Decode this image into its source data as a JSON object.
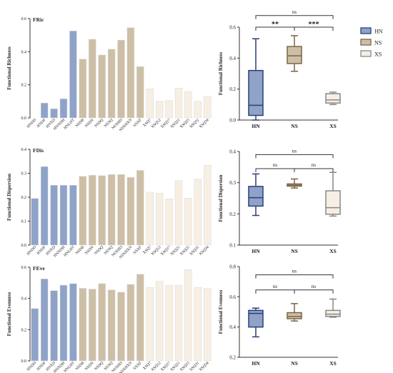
{
  "colors": {
    "HN": "#8fa3c9",
    "NS": "#cdbfa6",
    "XS": "#f7efe3",
    "HN_border": "#2b3f78",
    "NS_border": "#7a6547",
    "XS_border": "#888888",
    "bar_edge": "#d8d8d8"
  },
  "legend": {
    "entries": [
      {
        "name": "HN",
        "color_key": "HN"
      },
      {
        "name": "NS",
        "color_key": "NS"
      },
      {
        "name": "XS",
        "color_key": "XS"
      }
    ]
  },
  "chart_data": [
    {
      "type": "bar",
      "title": "FRic",
      "ylabel": "Functional Richness",
      "ylim": [
        0,
        0.6
      ],
      "yticks": [
        "0.0",
        "0.2",
        "0.4",
        "0.6"
      ],
      "categories": [
        "HNDD",
        "HNDF",
        "HNXD",
        "HNXDH",
        "HNLHT",
        "NSDB",
        "NSDN",
        "NSDQ",
        "NSNQ",
        "NSXHD",
        "NSXHXN",
        "NSXF",
        "XSQ7",
        "XSQ12",
        "XSQ17",
        "XSQ21",
        "XSQ25",
        "XSQ31",
        "XSQ34"
      ],
      "groups": [
        "HN",
        "HN",
        "HN",
        "HN",
        "HN",
        "NS",
        "NS",
        "NS",
        "NS",
        "NS",
        "NS",
        "NS",
        "XS",
        "XS",
        "XS",
        "XS",
        "XS",
        "XS",
        "XS"
      ],
      "values": [
        0.0,
        0.09,
        0.055,
        0.115,
        0.525,
        0.355,
        0.475,
        0.38,
        0.415,
        0.47,
        0.545,
        0.31,
        0.175,
        0.1,
        0.105,
        0.18,
        0.16,
        0.1,
        0.13
      ]
    },
    {
      "type": "box",
      "ylabel": "Functional Richness",
      "ylim": [
        0,
        0.6
      ],
      "yticks": [
        "0.0",
        "0.2",
        "0.4",
        "0.6"
      ],
      "categories": [
        "HN",
        "NS",
        "XS"
      ],
      "boxes": [
        {
          "group": "HN",
          "min": 0.0,
          "q1": 0.03,
          "median": 0.095,
          "q3": 0.32,
          "max": 0.525
        },
        {
          "group": "NS",
          "min": 0.315,
          "q1": 0.365,
          "median": 0.415,
          "q3": 0.475,
          "max": 0.545
        },
        {
          "group": "XS",
          "min": 0.1,
          "q1": 0.11,
          "median": 0.13,
          "q3": 0.17,
          "max": 0.18
        }
      ],
      "comparisons": [
        {
          "from": 0,
          "to": 2,
          "label": "ns",
          "level": 0.675
        },
        {
          "from": 0,
          "to": 1,
          "label": "**",
          "level": 0.6
        },
        {
          "from": 1,
          "to": 2,
          "label": "***",
          "level": 0.6
        }
      ]
    },
    {
      "type": "bar",
      "title": "FDis",
      "ylabel": "Functional Dispersion",
      "ylim": [
        0,
        0.4
      ],
      "yticks": [
        "0.0",
        "0.1",
        "0.2",
        "0.3",
        "0.4"
      ],
      "categories": [
        "HNDD",
        "HNDF",
        "HNXD",
        "HNXDH",
        "HNLHT",
        "NSDB",
        "NSDN",
        "NSDQ",
        "NSNQ",
        "NSXHD",
        "NSXHXN",
        "NSXF",
        "XSQ7",
        "XSQ12",
        "XSQ17",
        "XSQ21",
        "XSQ25",
        "XSQ31",
        "XSQ34"
      ],
      "groups": [
        "HN",
        "HN",
        "HN",
        "HN",
        "HN",
        "NS",
        "NS",
        "NS",
        "NS",
        "NS",
        "NS",
        "NS",
        "XS",
        "XS",
        "XS",
        "XS",
        "XS",
        "XS",
        "XS"
      ],
      "values": [
        0.195,
        0.328,
        0.25,
        0.25,
        0.25,
        0.287,
        0.292,
        0.29,
        0.295,
        0.295,
        0.283,
        0.312,
        0.221,
        0.217,
        0.193,
        0.27,
        0.196,
        0.275,
        0.333
      ]
    },
    {
      "type": "box",
      "ylabel": "Functional Dispersion",
      "ylim": [
        0.1,
        0.4
      ],
      "yticks": [
        "0.1",
        "0.2",
        "0.3",
        "0.4"
      ],
      "categories": [
        "HN",
        "NS",
        "XS"
      ],
      "boxes": [
        {
          "group": "HN",
          "min": 0.195,
          "q1": 0.225,
          "median": 0.252,
          "q3": 0.288,
          "max": 0.328
        },
        {
          "group": "NS",
          "min": 0.283,
          "q1": 0.289,
          "median": 0.292,
          "q3": 0.296,
          "max": 0.312
        },
        {
          "group": "XS",
          "min": 0.193,
          "q1": 0.199,
          "median": 0.22,
          "q3": 0.274,
          "max": 0.333
        }
      ],
      "comparisons": [
        {
          "from": 0,
          "to": 2,
          "label": "ns",
          "level": 0.39
        },
        {
          "from": 0,
          "to": 1,
          "label": "ns",
          "level": 0.345
        },
        {
          "from": 1,
          "to": 2,
          "label": "ns",
          "level": 0.345
        }
      ]
    },
    {
      "type": "bar",
      "title": "FEve",
      "ylabel": "Functional Evenness",
      "ylim": [
        0,
        0.6
      ],
      "yticks": [
        "0.0",
        "0.2",
        "0.4",
        "0.6"
      ],
      "categories": [
        "HNDD",
        "HNDF",
        "HNXD",
        "HNXDH",
        "HNLHT",
        "NSDB",
        "NSDN",
        "NSDQ",
        "NSNQ",
        "NSXHD",
        "NSXHXN",
        "NSXF",
        "XSQ7",
        "XSQ12",
        "XSQ17",
        "XSQ21",
        "XSQ25",
        "XSQ31",
        "XSQ34"
      ],
      "groups": [
        "HN",
        "HN",
        "HN",
        "HN",
        "HN",
        "NS",
        "NS",
        "NS",
        "NS",
        "NS",
        "NS",
        "NS",
        "XS",
        "XS",
        "XS",
        "XS",
        "XS",
        "XS",
        "XS"
      ],
      "values": [
        0.335,
        0.525,
        0.45,
        0.485,
        0.495,
        0.465,
        0.46,
        0.495,
        0.455,
        0.44,
        0.49,
        0.555,
        0.47,
        0.51,
        0.485,
        0.485,
        0.585,
        0.47,
        0.465
      ]
    },
    {
      "type": "box",
      "ylabel": "Functional Evenness",
      "ylim": [
        0.2,
        0.8
      ],
      "yticks": [
        "0.2",
        "0.4",
        "0.6",
        "0.8"
      ],
      "categories": [
        "HN",
        "NS",
        "XS"
      ],
      "boxes": [
        {
          "group": "HN",
          "min": 0.335,
          "q1": 0.4,
          "median": 0.49,
          "q3": 0.51,
          "max": 0.525
        },
        {
          "group": "NS",
          "min": 0.44,
          "q1": 0.455,
          "median": 0.47,
          "q3": 0.495,
          "max": 0.555
        },
        {
          "group": "XS",
          "min": 0.465,
          "q1": 0.47,
          "median": 0.485,
          "q3": 0.51,
          "max": 0.585
        }
      ],
      "comparisons": [
        {
          "from": 0,
          "to": 2,
          "label": "ns",
          "level": 0.745
        },
        {
          "from": 0,
          "to": 1,
          "label": "ns",
          "level": 0.645
        },
        {
          "from": 1,
          "to": 2,
          "label": "ns",
          "level": 0.645
        }
      ]
    }
  ]
}
